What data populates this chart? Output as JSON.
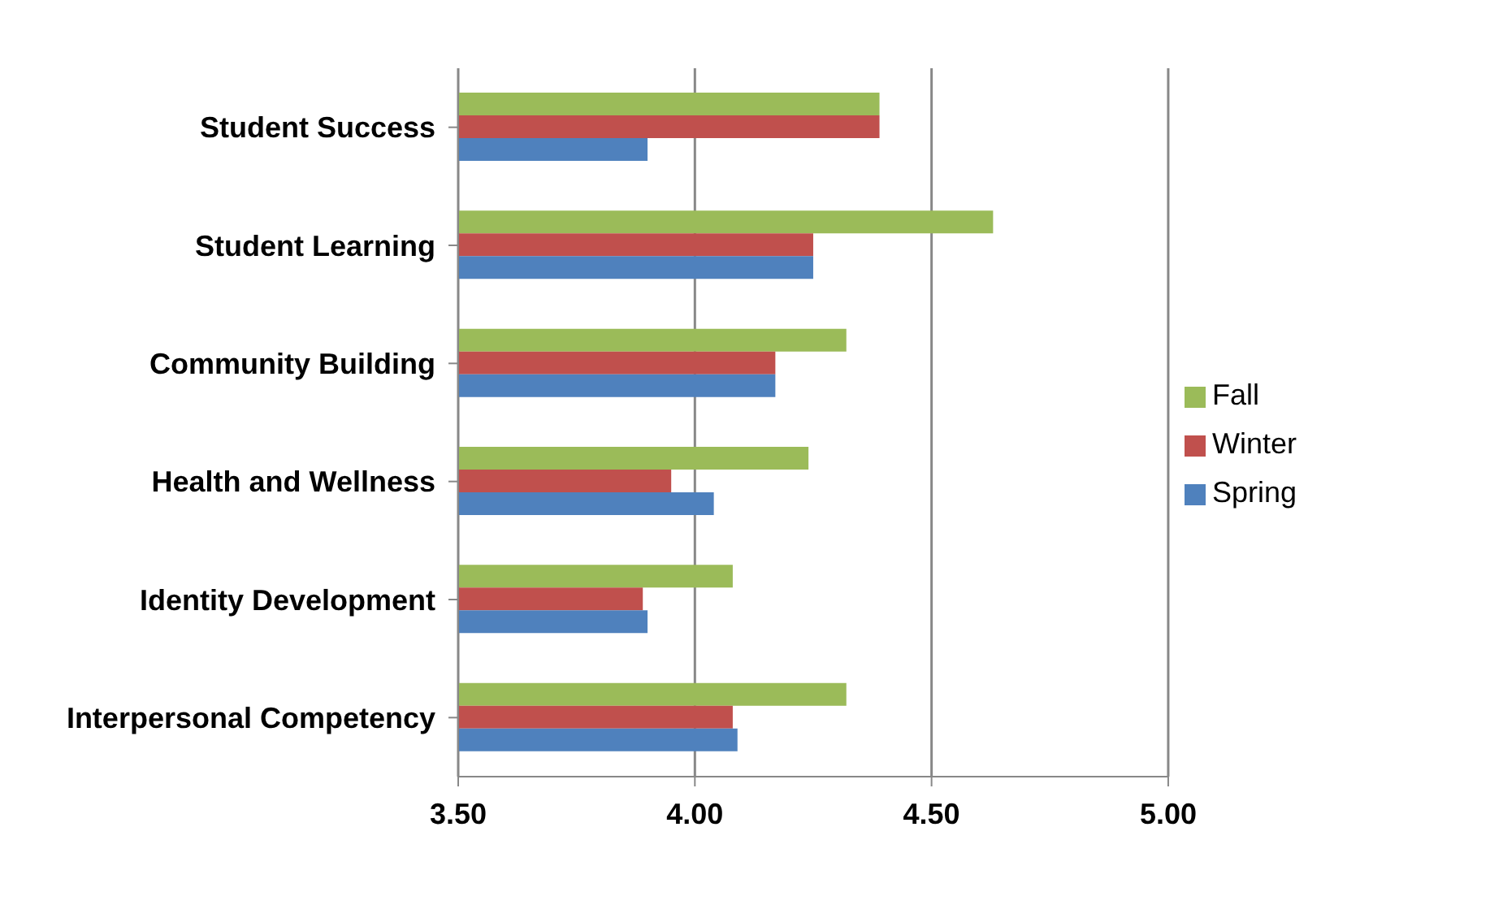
{
  "chart_data": {
    "type": "bar",
    "orientation": "horizontal",
    "categories": [
      "Student Success",
      "Student Learning",
      "Community Building",
      "Health and Wellness",
      "Identity Development",
      "Interpersonal Competency"
    ],
    "series": [
      {
        "name": "Fall",
        "color": "#9bbb59",
        "values": [
          4.39,
          4.63,
          4.32,
          4.24,
          4.08,
          4.32
        ]
      },
      {
        "name": "Winter",
        "color": "#c0504d",
        "values": [
          4.39,
          4.25,
          4.17,
          3.95,
          3.89,
          4.08
        ]
      },
      {
        "name": "Spring",
        "color": "#4f81bd",
        "values": [
          3.9,
          4.25,
          4.17,
          4.04,
          3.9,
          4.09
        ]
      }
    ],
    "xlim": [
      3.5,
      5
    ],
    "xticks": [
      {
        "value": 3.5,
        "label": "3.50"
      },
      {
        "value": 4,
        "label": "4.00"
      },
      {
        "value": 4.5,
        "label": "4.50"
      },
      {
        "value": 5,
        "label": "5.00"
      }
    ],
    "grid": "x",
    "legend": "right"
  }
}
